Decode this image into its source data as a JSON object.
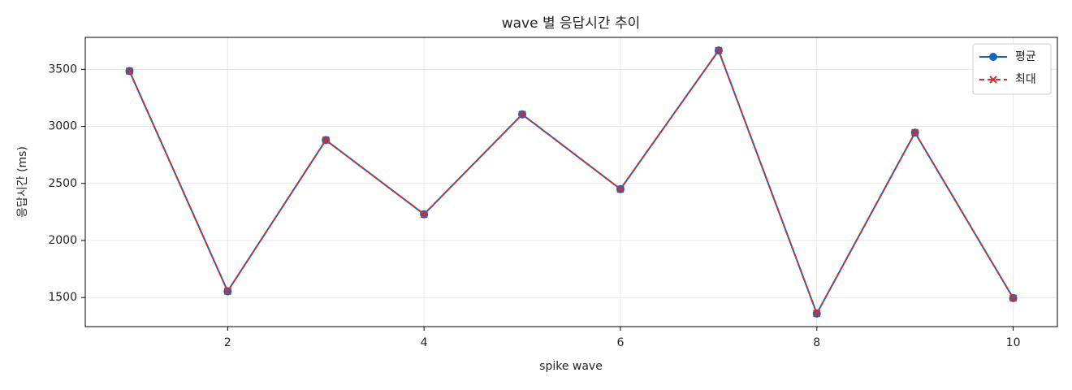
{
  "chart_data": {
    "type": "line",
    "title": "wave 별 응답시간 추이",
    "x_label": "spike wave",
    "y_label": "응답시간 (ms)",
    "x": [
      1,
      2,
      3,
      4,
      5,
      6,
      7,
      8,
      9,
      10
    ],
    "series": [
      {
        "name": "평균",
        "color": "#1565c0",
        "marker": "circle",
        "dashed": false,
        "values": [
          3485,
          1555,
          2880,
          2230,
          3105,
          2450,
          3665,
          1360,
          2945,
          1495
        ]
      },
      {
        "name": "최대",
        "color": "#d32f2f",
        "marker": "x",
        "dashed": true,
        "values": [
          3485,
          1555,
          2880,
          2230,
          3105,
          2450,
          3665,
          1360,
          2945,
          1495
        ]
      }
    ],
    "xlim": [
      0.55,
      10.45
    ],
    "xticks": [
      2,
      4,
      6,
      8,
      10
    ],
    "ylim": [
      1245,
      3780
    ],
    "yticks": [
      1500,
      2000,
      2500,
      3000,
      3500
    ],
    "grid": true,
    "legend": "upper-right"
  }
}
